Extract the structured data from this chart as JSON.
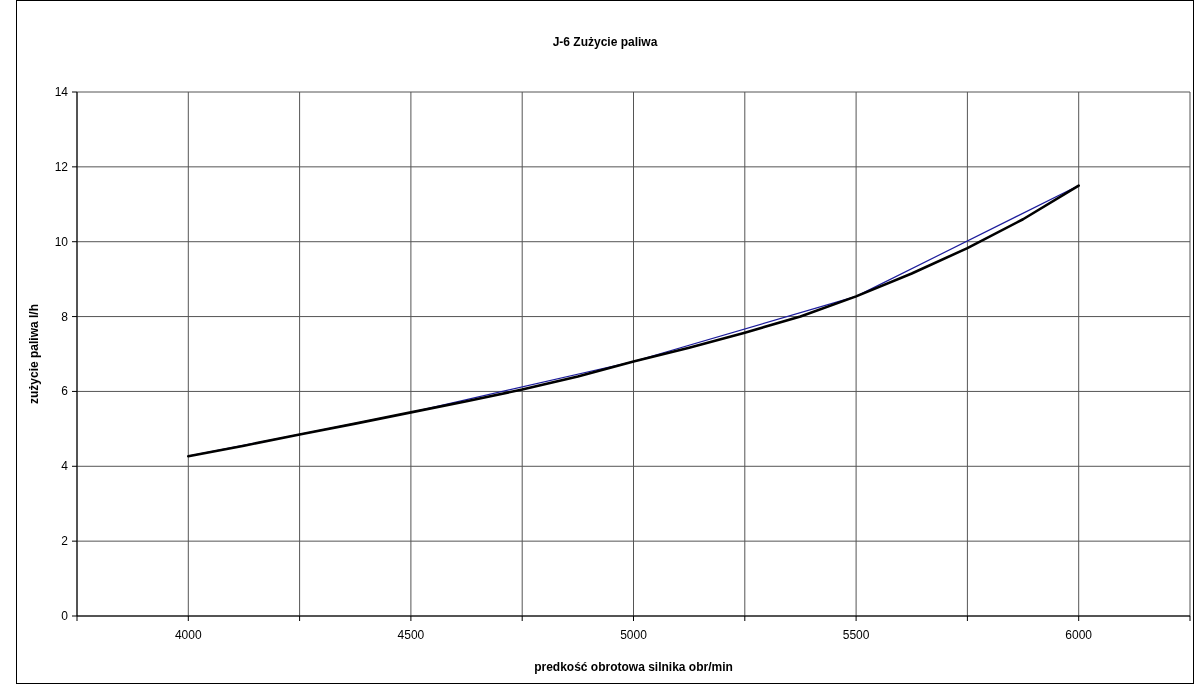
{
  "chart_data": {
    "type": "line",
    "title": "J-6 Zużycie paliwa",
    "xlabel": "predkość obrotowa silnika obr/min",
    "ylabel": "zużycie paliwa l/h",
    "xlim": [
      3750,
      6250
    ],
    "xticks": [
      {
        "value": 3750,
        "label": null
      },
      4000,
      {
        "value": 4250,
        "label": null
      },
      4500,
      {
        "value": 4750,
        "label": null
      },
      5000,
      {
        "value": 5250,
        "label": null
      },
      5500,
      {
        "value": 5750,
        "label": null
      },
      6000,
      {
        "value": 6250,
        "label": null
      }
    ],
    "ylim": [
      0,
      14
    ],
    "yticks": [
      0,
      2,
      4,
      6,
      8,
      10,
      12,
      14
    ],
    "grid": true,
    "marker": "none",
    "line_style": "solid",
    "series": [
      {
        "color": "#1c1c9c",
        "x": [
          4000,
          4500,
          5000,
          5500,
          6000
        ],
        "values": [
          4.27,
          5.44,
          6.8,
          8.54,
          11.5
        ]
      },
      {
        "color": "#000000",
        "x": [
          4000,
          4125,
          4250,
          4375,
          4500,
          4625,
          4750,
          4875,
          5000,
          5125,
          5250,
          5375,
          5500,
          5625,
          5750,
          5875,
          6000
        ],
        "values": [
          4.27,
          4.55,
          4.85,
          5.14,
          5.44,
          5.74,
          6.05,
          6.4,
          6.8,
          7.17,
          7.57,
          8.0,
          8.54,
          9.15,
          9.83,
          10.6,
          11.5
        ]
      }
    ]
  }
}
